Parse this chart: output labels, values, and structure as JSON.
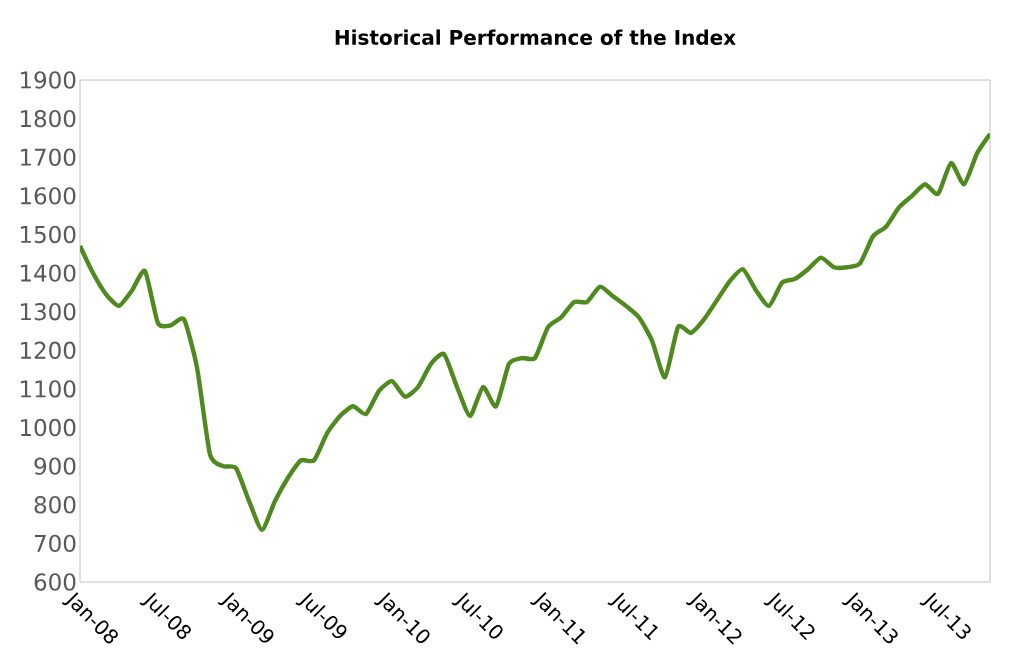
{
  "chart_data": {
    "type": "line",
    "title": "Historical Performance of the Index",
    "x": [
      "2008-01",
      "2008-02",
      "2008-03",
      "2008-04",
      "2008-05",
      "2008-06",
      "2008-07",
      "2008-08",
      "2008-09",
      "2008-10",
      "2008-11",
      "2008-12",
      "2009-01",
      "2009-02",
      "2009-03",
      "2009-04",
      "2009-05",
      "2009-06",
      "2009-07",
      "2009-08",
      "2009-09",
      "2009-10",
      "2009-11",
      "2009-12",
      "2010-01",
      "2010-02",
      "2010-03",
      "2010-04",
      "2010-05",
      "2010-06",
      "2010-07",
      "2010-08",
      "2010-09",
      "2010-10",
      "2010-11",
      "2010-12",
      "2011-01",
      "2011-02",
      "2011-03",
      "2011-04",
      "2011-05",
      "2011-06",
      "2011-07",
      "2011-08",
      "2011-09",
      "2011-10",
      "2011-11",
      "2011-12",
      "2012-01",
      "2012-02",
      "2012-03",
      "2012-04",
      "2012-05",
      "2012-06",
      "2012-07",
      "2012-08",
      "2012-09",
      "2012-10",
      "2012-11",
      "2012-12",
      "2013-01",
      "2013-02",
      "2013-03",
      "2013-04",
      "2013-05",
      "2013-06",
      "2013-07",
      "2013-08",
      "2013-09",
      "2013-10",
      "2013-11"
    ],
    "series": [
      {
        "color": "#4e8a1e",
        "values": [
          1470,
          1400,
          1345,
          1315,
          1355,
          1405,
          1270,
          1265,
          1280,
          1155,
          930,
          900,
          895,
          810,
          735,
          810,
          870,
          915,
          915,
          985,
          1030,
          1055,
          1035,
          1095,
          1120,
          1080,
          1105,
          1165,
          1190,
          1105,
          1030,
          1105,
          1055,
          1165,
          1180,
          1180,
          1260,
          1285,
          1325,
          1325,
          1365,
          1340,
          1315,
          1285,
          1225,
          1130,
          1260,
          1245,
          1280,
          1330,
          1380,
          1410,
          1355,
          1315,
          1375,
          1385,
          1410,
          1440,
          1415,
          1415,
          1425,
          1495,
          1520,
          1570,
          1600,
          1630,
          1605,
          1685,
          1630,
          1710,
          1760
        ]
      }
    ],
    "xlim": [
      "2008-01",
      "2013-11"
    ],
    "ylim": [
      600,
      1900
    ],
    "yticks": [
      600,
      700,
      800,
      900,
      1000,
      1100,
      1200,
      1300,
      1400,
      1500,
      1600,
      1700,
      1800,
      1900
    ],
    "xticks": [
      {
        "value": "2008-01",
        "label": "Jan-08"
      },
      {
        "value": "2008-07",
        "label": "Jul-08"
      },
      {
        "value": "2009-01",
        "label": "Jan-09"
      },
      {
        "value": "2009-07",
        "label": "Jul-09"
      },
      {
        "value": "2010-01",
        "label": "Jan-10"
      },
      {
        "value": "2010-07",
        "label": "Jul-10"
      },
      {
        "value": "2011-01",
        "label": "Jan-11"
      },
      {
        "value": "2011-07",
        "label": "Jul-11"
      },
      {
        "value": "2012-01",
        "label": "Jan-12"
      },
      {
        "value": "2012-07",
        "label": "Jul-12"
      },
      {
        "value": "2013-01",
        "label": "Jan-13"
      },
      {
        "value": "2013-07",
        "label": "Jul-13"
      }
    ]
  }
}
